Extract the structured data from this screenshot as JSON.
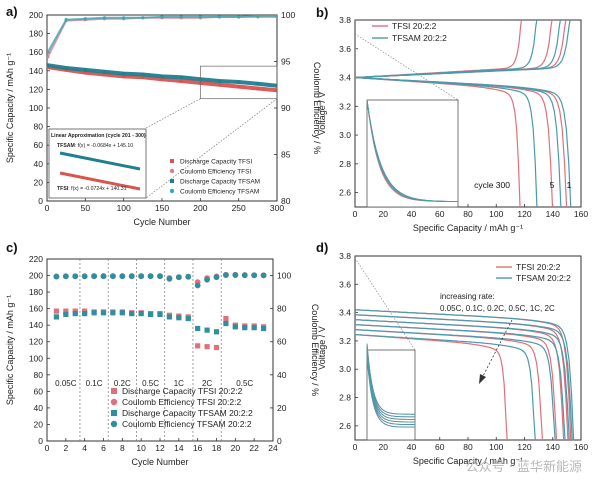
{
  "watermark": "公众号 · 蓝华新能源",
  "chart_data": [
    {
      "panel": "a)",
      "type": "scatter",
      "xlabel": "Cycle Number",
      "ylabel": "Specific Capacity / mAh g⁻¹",
      "y2label": "Coulomb Efficiency / %",
      "xlim": [
        0,
        300
      ],
      "ylim": [
        0,
        200
      ],
      "y2lim": [
        80,
        100
      ],
      "xticks": [
        0,
        50,
        100,
        150,
        200,
        250,
        300
      ],
      "yticks": [
        0,
        20,
        40,
        60,
        80,
        100,
        120,
        140,
        160,
        180,
        200
      ],
      "y2ticks": [
        80,
        85,
        90,
        95,
        100
      ],
      "legend_position": "bottom-right",
      "colors": {
        "tfsi_discharge": "#d9534f",
        "tfsi_ce": "#e07b8a",
        "tfsam_discharge": "#1f7f8f",
        "tfsam_ce": "#3aa7b5"
      },
      "series": [
        {
          "name": "Discharge Capacity TFSI",
          "axis": "left",
          "x": [
            1,
            25,
            50,
            75,
            100,
            125,
            150,
            175,
            200,
            225,
            250,
            275,
            300
          ],
          "values": [
            144,
            141,
            138,
            136,
            134,
            133,
            131,
            129,
            127,
            125,
            123,
            121,
            119
          ]
        },
        {
          "name": "Coulomb Efficiency TFSI",
          "axis": "right",
          "x": [
            1,
            25,
            50,
            75,
            100,
            125,
            150,
            175,
            200,
            225,
            250,
            275,
            300
          ],
          "values": [
            95.5,
            99.4,
            99.5,
            99.6,
            99.6,
            99.7,
            99.7,
            99.7,
            99.7,
            99.8,
            99.8,
            99.8,
            99.8
          ]
        },
        {
          "name": "Discharge Capacity TFSAM",
          "axis": "left",
          "x": [
            1,
            25,
            50,
            75,
            100,
            125,
            150,
            175,
            200,
            225,
            250,
            275,
            300
          ],
          "values": [
            146,
            143,
            141,
            139,
            137,
            136,
            134,
            133,
            131,
            129,
            128,
            126,
            124
          ]
        },
        {
          "name": "Coulomb Efficiency TFSAM",
          "axis": "right",
          "x": [
            1,
            25,
            50,
            75,
            100,
            125,
            150,
            175,
            200,
            225,
            250,
            275,
            300
          ],
          "values": [
            96.0,
            99.5,
            99.6,
            99.7,
            99.7,
            99.7,
            99.8,
            99.8,
            99.8,
            99.8,
            99.8,
            99.9,
            99.9
          ]
        }
      ],
      "inset": {
        "title": "Linear Approximation (cycle 201 - 300)",
        "tfsam_label": "TFSAM",
        "tfsam_fit": ": f(x) = -0.0684x + 145.10",
        "tfsi_label": "TFSI",
        "tfsi_fit": ": f(x) = -0.0724x + 140.31"
      }
    },
    {
      "panel": "b)",
      "type": "line",
      "xlabel": "Specific Capacity / mAh g⁻¹",
      "ylabel": "Voltage / V",
      "xlim": [
        0,
        160
      ],
      "ylim": [
        2.5,
        3.8
      ],
      "xticks": [
        0,
        20,
        40,
        60,
        80,
        100,
        120,
        140,
        160
      ],
      "yticks": [
        2.6,
        2.8,
        3.0,
        3.2,
        3.4,
        3.6,
        3.8
      ],
      "legend_position": "top-left",
      "series": [
        {
          "name": "TFSI 20:2:2",
          "color": "#e0707a",
          "discharge_capacities": [
            117,
            140,
            150
          ],
          "charge_capacities": [
            120,
            142,
            152
          ]
        },
        {
          "name": "TFSAM 20:2:2",
          "color": "#4a9aab",
          "discharge_capacities": [
            129,
            146,
            153
          ],
          "charge_capacities": [
            131,
            148,
            155
          ]
        }
      ],
      "annotations": [
        "cycle 300",
        "5",
        "1"
      ]
    },
    {
      "panel": "c)",
      "type": "scatter",
      "xlabel": "Cycle Number",
      "ylabel": "Specific Capacity / mAh g⁻¹",
      "y2label": "Coulomb Efficiency / %",
      "xlim": [
        0,
        24
      ],
      "ylim": [
        0,
        220
      ],
      "y2lim": [
        0,
        110
      ],
      "xticks": [
        0,
        2,
        4,
        6,
        8,
        10,
        12,
        14,
        16,
        18,
        20,
        22,
        24
      ],
      "yticks": [
        0,
        20,
        40,
        60,
        80,
        100,
        120,
        140,
        160,
        180,
        200,
        220
      ],
      "y2ticks": [
        0,
        20,
        40,
        60,
        80,
        100
      ],
      "rate_labels": [
        "0.05C",
        "0.1C",
        "0.2C",
        "0.5C",
        "1C",
        "2C",
        "0.5C"
      ],
      "legend_position": "bottom-center",
      "x": [
        1,
        2,
        3,
        4,
        5,
        6,
        7,
        8,
        9,
        10,
        11,
        12,
        13,
        14,
        15,
        16,
        17,
        18,
        19,
        20,
        21,
        22,
        23
      ],
      "series": [
        {
          "name": "Discharge Capacity TFSI 20:2:2",
          "axis": "left",
          "values": [
            157,
            157,
            157,
            157,
            156,
            156,
            156,
            156,
            155,
            155,
            154,
            154,
            152,
            151,
            150,
            115,
            114,
            113,
            148,
            140,
            139,
            139,
            138
          ]
        },
        {
          "name": "Coulomb Efficiency TFSI 20:2:2",
          "axis": "right",
          "values": [
            99.5,
            99.6,
            99.6,
            99.6,
            99.6,
            99.6,
            99.6,
            99.6,
            99.6,
            99.6,
            99.6,
            99.6,
            98.5,
            99.0,
            99.2,
            96,
            98.5,
            99.5,
            100.5,
            100.5,
            100.3,
            100.2,
            100.2
          ]
        },
        {
          "name": "Discharge Capacity TFSAM 20:2:2",
          "axis": "left",
          "values": [
            150,
            153,
            154,
            154,
            155,
            155,
            155,
            155,
            154,
            154,
            153,
            153,
            150,
            149,
            148,
            136,
            134,
            132,
            142,
            138,
            137,
            137,
            136
          ]
        },
        {
          "name": "Coulomb Efficiency TFSAM 20:2:2",
          "axis": "right",
          "values": [
            99.4,
            99.5,
            99.5,
            99.5,
            99.6,
            99.6,
            99.6,
            99.6,
            99.6,
            99.6,
            99.6,
            99.6,
            98.0,
            99.0,
            99.3,
            94,
            97.5,
            99.0,
            100.3,
            100.3,
            100.2,
            100.2,
            100.1
          ]
        }
      ]
    },
    {
      "panel": "d)",
      "type": "line",
      "xlabel": "Specific Capacity / mAh g⁻¹",
      "ylabel": "Voltage / V",
      "xlim": [
        0,
        160
      ],
      "ylim": [
        2.5,
        3.8
      ],
      "xticks": [
        0,
        20,
        40,
        60,
        80,
        100,
        120,
        140,
        160
      ],
      "yticks": [
        2.6,
        2.8,
        3.0,
        3.2,
        3.4,
        3.6,
        3.8
      ],
      "legend_position": "top-right",
      "series": [
        {
          "name": "TFSI 20:2:2",
          "color": "#e0707a",
          "discharge_capacities": [
            153,
            151,
            148,
            143,
            133,
            108
          ]
        },
        {
          "name": "TFSAM 20:2:2",
          "color": "#4a9aab",
          "discharge_capacities": [
            155,
            154,
            152,
            149,
            142,
            128
          ]
        }
      ],
      "annotation_title": "increasing rate:",
      "annotation_rates": "0.05C, 0.1C, 0.2C, 0.5C, 1C, 2C"
    }
  ]
}
